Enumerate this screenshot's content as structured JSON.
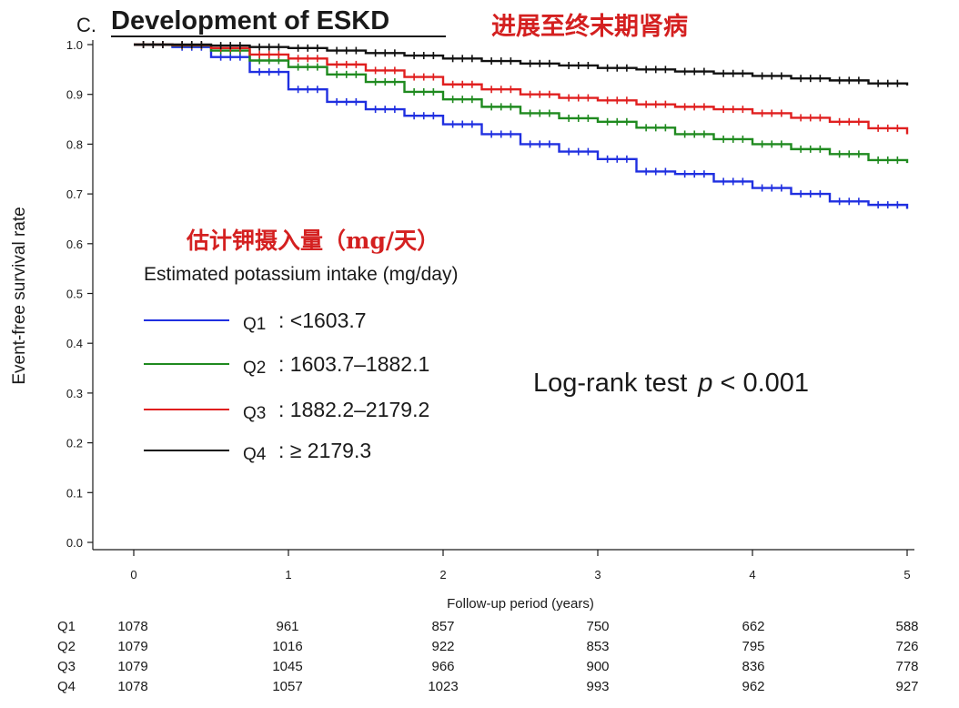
{
  "panel": {
    "letter": "C.",
    "title": "Development of ESKD",
    "title_cn": "进展至终末期肾病"
  },
  "legend": {
    "heading_cn": "估计钾摄入量（mg/天）",
    "heading": "Estimated potassium intake (mg/day)",
    "items": [
      {
        "q": "Q1",
        "range": ": <1603.7",
        "color": "#1f2fe0"
      },
      {
        "q": "Q2",
        "range": ": 1603.7–1882.1",
        "color": "#1f8a1f"
      },
      {
        "q": "Q3",
        "range": ": 1882.2–2179.2",
        "color": "#e01f1f"
      },
      {
        "q": "Q4",
        "range": ": ≥ 2179.3",
        "color": "#111111"
      }
    ]
  },
  "annotation": {
    "label": "Log-rank test",
    "p_symbol": "p",
    "p_value": " < 0.001"
  },
  "chart_data": {
    "type": "line",
    "step": true,
    "xlabel": "Follow-up period (years)",
    "ylabel": "Event-free survival rate",
    "xlim": [
      0,
      5
    ],
    "ylim": [
      0,
      1
    ],
    "x_ticks": [
      "0",
      "1",
      "2",
      "3",
      "4",
      "5"
    ],
    "y_ticks": [
      "0.0",
      "0.1",
      "0.2",
      "0.3",
      "0.4",
      "0.5",
      "0.6",
      "0.7",
      "0.8",
      "0.9",
      "1.0"
    ],
    "grid": false,
    "series": [
      {
        "name": "Q1",
        "color": "#1f2fe0",
        "x": [
          0,
          0.25,
          0.5,
          0.75,
          1.0,
          1.25,
          1.5,
          1.75,
          2.0,
          2.25,
          2.5,
          2.75,
          3.0,
          3.25,
          3.5,
          3.75,
          4.0,
          4.25,
          4.5,
          4.75,
          5.0
        ],
        "y": [
          1.0,
          0.995,
          0.975,
          0.945,
          0.91,
          0.885,
          0.87,
          0.857,
          0.84,
          0.82,
          0.8,
          0.785,
          0.77,
          0.745,
          0.74,
          0.725,
          0.712,
          0.7,
          0.685,
          0.678,
          0.67
        ]
      },
      {
        "name": "Q2",
        "color": "#1f8a1f",
        "x": [
          0,
          0.25,
          0.5,
          0.75,
          1.0,
          1.25,
          1.5,
          1.75,
          2.0,
          2.25,
          2.5,
          2.75,
          3.0,
          3.25,
          3.5,
          3.75,
          4.0,
          4.25,
          4.5,
          4.75,
          5.0
        ],
        "y": [
          1.0,
          0.998,
          0.988,
          0.968,
          0.955,
          0.94,
          0.925,
          0.905,
          0.89,
          0.875,
          0.862,
          0.852,
          0.845,
          0.833,
          0.82,
          0.81,
          0.8,
          0.79,
          0.78,
          0.768,
          0.762
        ]
      },
      {
        "name": "Q3",
        "color": "#e01f1f",
        "x": [
          0,
          0.25,
          0.5,
          0.75,
          1.0,
          1.25,
          1.5,
          1.75,
          2.0,
          2.25,
          2.5,
          2.75,
          3.0,
          3.25,
          3.5,
          3.75,
          4.0,
          4.25,
          4.5,
          4.75,
          5.0
        ],
        "y": [
          1.0,
          0.999,
          0.993,
          0.98,
          0.972,
          0.96,
          0.948,
          0.935,
          0.92,
          0.91,
          0.9,
          0.893,
          0.888,
          0.88,
          0.875,
          0.87,
          0.862,
          0.853,
          0.845,
          0.832,
          0.82
        ]
      },
      {
        "name": "Q4",
        "color": "#111111",
        "x": [
          0,
          0.25,
          0.5,
          0.75,
          1.0,
          1.25,
          1.5,
          1.75,
          2.0,
          2.25,
          2.5,
          2.75,
          3.0,
          3.25,
          3.5,
          3.75,
          4.0,
          4.25,
          4.5,
          4.75,
          5.0
        ],
        "y": [
          1.0,
          1.0,
          0.998,
          0.995,
          0.993,
          0.988,
          0.983,
          0.978,
          0.972,
          0.967,
          0.962,
          0.958,
          0.953,
          0.95,
          0.946,
          0.942,
          0.937,
          0.932,
          0.928,
          0.922,
          0.918
        ]
      }
    ],
    "risk_table": {
      "rows": [
        {
          "label": "Q1",
          "values": [
            "1078",
            "961",
            "857",
            "750",
            "662",
            "588"
          ]
        },
        {
          "label": "Q2",
          "values": [
            "1079",
            "1016",
            "922",
            "853",
            "795",
            "726"
          ]
        },
        {
          "label": "Q3",
          "values": [
            "1079",
            "1045",
            "966",
            "900",
            "836",
            "778"
          ]
        },
        {
          "label": "Q4",
          "values": [
            "1078",
            "1057",
            "1023",
            "993",
            "962",
            "927"
          ]
        }
      ]
    }
  }
}
